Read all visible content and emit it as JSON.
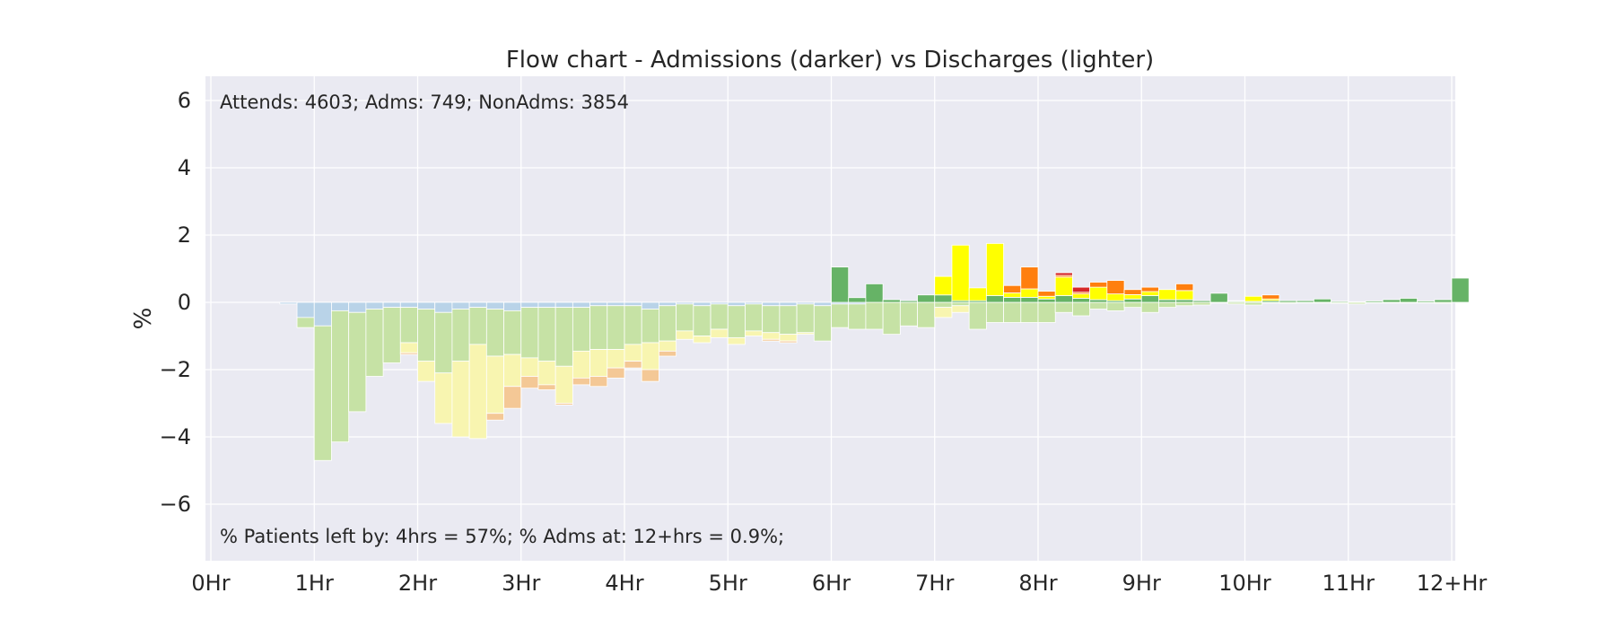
{
  "chart_data": {
    "type": "bar",
    "title": "Flow chart - Admissions (darker) vs Discharges (lighter)",
    "xlabel": "",
    "ylabel": "%",
    "xlim": [
      0,
      12
    ],
    "ylim": [
      -7.6,
      6.7
    ],
    "x_ticks": [
      0,
      1,
      2,
      3,
      4,
      5,
      6,
      7,
      8,
      9,
      10,
      11,
      12
    ],
    "x_tick_labels": [
      "0Hr",
      "1Hr",
      "2Hr",
      "3Hr",
      "4Hr",
      "5Hr",
      "6Hr",
      "7Hr",
      "8Hr",
      "9Hr",
      "10Hr",
      "11Hr",
      "12+Hr"
    ],
    "y_ticks": [
      -6,
      -4,
      -2,
      0,
      2,
      4,
      6
    ],
    "y_tick_labels": [
      "−6",
      "−4",
      "−2",
      "0",
      "2",
      "4",
      "6"
    ],
    "grid": true,
    "bin_width_hr": 0.1667,
    "stack_segment_colors": {
      "admissions": {
        "green": "#66b366",
        "yellow": "#ffff00",
        "orange": "#ff7f0e",
        "red": "#d62728"
      },
      "discharges": {
        "blue": "#b9d3e8",
        "green": "#c6e2a5",
        "yellow": "#f8f5b0",
        "orange": "#f4c896"
      }
    },
    "admissions": [
      {
        "x": 6.0,
        "green": 1.05
      },
      {
        "x": 6.1667,
        "green": 0.14
      },
      {
        "x": 6.3333,
        "green": 0.55
      },
      {
        "x": 6.5,
        "green": 0.08
      },
      {
        "x": 6.6667,
        "green": 0.05
      },
      {
        "x": 6.8333,
        "green": 0.22
      },
      {
        "x": 7.0,
        "green": 0.22,
        "yellow": 0.55
      },
      {
        "x": 7.1667,
        "green": 0.05,
        "yellow": 1.65
      },
      {
        "x": 7.3333,
        "green": 0.05,
        "yellow": 0.38
      },
      {
        "x": 7.5,
        "green": 0.2,
        "yellow": 1.55
      },
      {
        "x": 7.6667,
        "green": 0.15,
        "yellow": 0.13,
        "orange": 0.22
      },
      {
        "x": 7.8333,
        "green": 0.15,
        "yellow": 0.25,
        "orange": 0.65
      },
      {
        "x": 8.0,
        "green": 0.1,
        "yellow": 0.08,
        "orange": 0.15
      },
      {
        "x": 8.1667,
        "green": 0.2,
        "yellow": 0.55,
        "orange": 0.05,
        "red": 0.08
      },
      {
        "x": 8.3333,
        "green": 0.12,
        "yellow": 0.13,
        "orange": 0.05,
        "red": 0.15
      },
      {
        "x": 8.5,
        "green": 0.08,
        "yellow": 0.37,
        "orange": 0.15
      },
      {
        "x": 8.6667,
        "green": 0.05,
        "yellow": 0.2,
        "orange": 0.4
      },
      {
        "x": 8.8333,
        "green": 0.1,
        "yellow": 0.13,
        "orange": 0.15
      },
      {
        "x": 9.0,
        "green": 0.2,
        "yellow": 0.12,
        "orange": 0.13
      },
      {
        "x": 9.1667,
        "green": 0.08,
        "yellow": 0.3
      },
      {
        "x": 9.3333,
        "green": 0.08,
        "yellow": 0.27,
        "orange": 0.2
      },
      {
        "x": 9.5,
        "green": 0.05
      },
      {
        "x": 9.6667,
        "green": 0.27
      },
      {
        "x": 9.8333,
        "green": 0.03,
        "yellow": 0.02
      },
      {
        "x": 10.0,
        "green": 0.03,
        "yellow": 0.15
      },
      {
        "x": 10.1667,
        "green": 0.05,
        "yellow": 0.05,
        "orange": 0.12
      },
      {
        "x": 10.3333,
        "green": 0.05
      },
      {
        "x": 10.5,
        "green": 0.05
      },
      {
        "x": 10.6667,
        "green": 0.1
      },
      {
        "x": 10.8333,
        "green": 0.03
      },
      {
        "x": 11.0,
        "green": 0.02
      },
      {
        "x": 11.1667,
        "green": 0.04
      },
      {
        "x": 11.3333,
        "green": 0.08
      },
      {
        "x": 11.5,
        "green": 0.12
      },
      {
        "x": 11.6667,
        "green": 0.04
      },
      {
        "x": 11.8333,
        "green": 0.08
      },
      {
        "x": 12.0,
        "green": 0.72
      }
    ],
    "discharges": [
      {
        "x": 0.6667,
        "blue": 0.05
      },
      {
        "x": 0.8333,
        "blue": 0.45,
        "green": 0.3
      },
      {
        "x": 1.0,
        "blue": 0.7,
        "green": 4.0
      },
      {
        "x": 1.1667,
        "blue": 0.25,
        "green": 3.9
      },
      {
        "x": 1.3333,
        "blue": 0.3,
        "green": 2.95
      },
      {
        "x": 1.5,
        "blue": 0.2,
        "green": 2.0
      },
      {
        "x": 1.6667,
        "blue": 0.15,
        "green": 1.65
      },
      {
        "x": 1.8333,
        "blue": 0.15,
        "green": 1.05,
        "yellow": 0.3,
        "orange": 0.05
      },
      {
        "x": 2.0,
        "blue": 0.2,
        "green": 1.55,
        "yellow": 0.6
      },
      {
        "x": 2.1667,
        "blue": 0.3,
        "green": 1.8,
        "yellow": 1.5
      },
      {
        "x": 2.3333,
        "blue": 0.2,
        "green": 1.55,
        "yellow": 2.25
      },
      {
        "x": 2.5,
        "blue": 0.15,
        "green": 1.1,
        "yellow": 2.8
      },
      {
        "x": 2.6667,
        "blue": 0.2,
        "green": 1.4,
        "yellow": 1.7,
        "orange": 0.2
      },
      {
        "x": 2.8333,
        "blue": 0.25,
        "green": 1.3,
        "yellow": 0.95,
        "orange": 0.65
      },
      {
        "x": 3.0,
        "blue": 0.15,
        "green": 1.5,
        "yellow": 0.55,
        "orange": 0.35
      },
      {
        "x": 3.1667,
        "blue": 0.15,
        "green": 1.6,
        "yellow": 0.7,
        "orange": 0.15
      },
      {
        "x": 3.3333,
        "blue": 0.15,
        "green": 1.75,
        "yellow": 1.1,
        "orange": 0.05
      },
      {
        "x": 3.5,
        "blue": 0.15,
        "green": 1.3,
        "yellow": 0.8,
        "orange": 0.2
      },
      {
        "x": 3.6667,
        "blue": 0.1,
        "green": 1.3,
        "yellow": 0.8,
        "orange": 0.3
      },
      {
        "x": 3.8333,
        "blue": 0.1,
        "green": 1.3,
        "yellow": 0.55,
        "orange": 0.3
      },
      {
        "x": 4.0,
        "blue": 0.1,
        "green": 1.15,
        "yellow": 0.5,
        "orange": 0.2
      },
      {
        "x": 4.1667,
        "blue": 0.2,
        "green": 1.0,
        "yellow": 0.8,
        "orange": 0.35
      },
      {
        "x": 4.3333,
        "blue": 0.1,
        "green": 1.05,
        "yellow": 0.3,
        "orange": 0.15
      },
      {
        "x": 4.5,
        "blue": 0.05,
        "green": 0.8,
        "yellow": 0.25
      },
      {
        "x": 4.6667,
        "blue": 0.1,
        "green": 0.9,
        "yellow": 0.2
      },
      {
        "x": 4.8333,
        "blue": 0.05,
        "green": 0.75,
        "yellow": 0.25
      },
      {
        "x": 5.0,
        "blue": 0.1,
        "green": 0.95,
        "yellow": 0.2
      },
      {
        "x": 5.1667,
        "blue": 0.05,
        "green": 0.8,
        "yellow": 0.15
      },
      {
        "x": 5.3333,
        "blue": 0.1,
        "green": 0.8,
        "yellow": 0.2,
        "orange": 0.05
      },
      {
        "x": 5.5,
        "blue": 0.1,
        "green": 0.85,
        "yellow": 0.2,
        "orange": 0.05
      },
      {
        "x": 5.6667,
        "blue": 0.05,
        "green": 0.85,
        "yellow": 0.05
      },
      {
        "x": 5.8333,
        "blue": 0.1,
        "green": 1.05
      },
      {
        "x": 6.0,
        "blue": 0.05,
        "green": 0.7
      },
      {
        "x": 6.1667,
        "blue": 0.05,
        "green": 0.75
      },
      {
        "x": 6.3333,
        "green": 0.8
      },
      {
        "x": 6.5,
        "green": 0.95
      },
      {
        "x": 6.6667,
        "green": 0.7
      },
      {
        "x": 6.8333,
        "green": 0.75
      },
      {
        "x": 7.0,
        "green": 0.15,
        "yellow": 0.3
      },
      {
        "x": 7.1667,
        "green": 0.1,
        "yellow": 0.2
      },
      {
        "x": 7.3333,
        "green": 0.8
      },
      {
        "x": 7.5,
        "green": 0.6
      },
      {
        "x": 7.6667,
        "green": 0.6
      },
      {
        "x": 7.8333,
        "green": 0.6
      },
      {
        "x": 8.0,
        "green": 0.6
      },
      {
        "x": 8.1667,
        "green": 0.3
      },
      {
        "x": 8.3333,
        "green": 0.4
      },
      {
        "x": 8.5,
        "green": 0.2
      },
      {
        "x": 8.6667,
        "green": 0.25
      },
      {
        "x": 8.8333,
        "green": 0.15
      },
      {
        "x": 9.0,
        "green": 0.3
      },
      {
        "x": 9.1667,
        "green": 0.15
      },
      {
        "x": 9.3333,
        "green": 0.1
      },
      {
        "x": 9.5,
        "green": 0.08
      },
      {
        "x": 9.6667,
        "green": 0.02
      },
      {
        "x": 9.8333,
        "green": 0.05
      },
      {
        "x": 10.0,
        "green": 0.08
      },
      {
        "x": 10.1667,
        "green": 0.02
      },
      {
        "x": 10.3333,
        "green": 0.03
      },
      {
        "x": 10.5,
        "green": 0.02
      },
      {
        "x": 10.6667,
        "green": 0.02
      },
      {
        "x": 10.8333,
        "green": 0.03
      },
      {
        "x": 11.0,
        "green": 0.05
      },
      {
        "x": 11.1667,
        "green": 0.02
      },
      {
        "x": 11.3333,
        "green": 0.02
      },
      {
        "x": 11.5,
        "green": 0.02
      },
      {
        "x": 11.6667,
        "green": 0.02
      },
      {
        "x": 11.8333,
        "green": 0.03
      }
    ],
    "annotations": {
      "top": "Attends: 4603;    Adms: 749;    NonAdms: 3854",
      "bottom": "% Patients left by: 4hrs = 57%;    % Adms at: 12+hrs = 0.9%;"
    }
  }
}
